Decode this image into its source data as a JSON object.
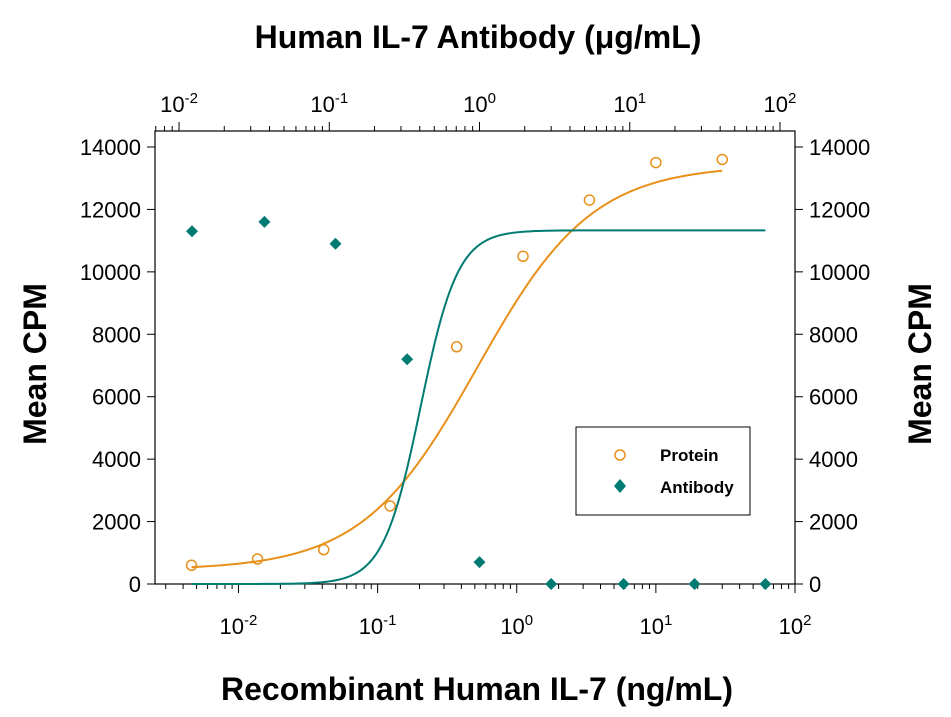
{
  "chart_data": {
    "type": "scatter",
    "title": "Human IL-7 Antibody (μg/mL)",
    "xlabel": "Recombinant Human IL-7 (ng/mL)",
    "ylabel": "Mean CPM",
    "ylabel_right": "Mean CPM",
    "x_scale": "log",
    "xlim": [
      0.002512,
      100
    ],
    "top_x_scale": "log",
    "top_xlim": [
      0.006918,
      125.9
    ],
    "ylim": [
      0,
      14000
    ],
    "y_ticks": [
      "0",
      "2000",
      "4000",
      "6000",
      "8000",
      "10000",
      "12000",
      "14000"
    ],
    "x_ticks": [
      {
        "value": 0.01,
        "base": "10",
        "exp": "-2"
      },
      {
        "value": 0.1,
        "base": "10",
        "exp": "-1"
      },
      {
        "value": 1,
        "base": "10",
        "exp": "0"
      },
      {
        "value": 10,
        "base": "10",
        "exp": "1"
      },
      {
        "value": 100,
        "base": "10",
        "exp": "2"
      }
    ],
    "top_x_ticks": [
      {
        "value": 0.01,
        "base": "10",
        "exp": "-2"
      },
      {
        "value": 0.1,
        "base": "10",
        "exp": "-1"
      },
      {
        "value": 1,
        "base": "10",
        "exp": "0"
      },
      {
        "value": 10,
        "base": "10",
        "exp": "1"
      },
      {
        "value": 100,
        "base": "10",
        "exp": "2"
      }
    ],
    "grid": false,
    "legend_position": "center-right",
    "series": [
      {
        "name": "Protein",
        "marker": "open-circle",
        "color": "#E8901A",
        "axis": "bottom",
        "points": [
          {
            "x": 0.0046,
            "y": 600
          },
          {
            "x": 0.0137,
            "y": 800
          },
          {
            "x": 0.041,
            "y": 1100
          },
          {
            "x": 0.123,
            "y": 2500
          },
          {
            "x": 0.37,
            "y": 7600
          },
          {
            "x": 1.11,
            "y": 10500
          },
          {
            "x": 3.33,
            "y": 12300
          },
          {
            "x": 10,
            "y": 13500
          },
          {
            "x": 30,
            "y": 13600
          }
        ],
        "fit": {
          "bottom": 450,
          "top": 13420,
          "ec50": 0.52,
          "hill": 1.05
        }
      },
      {
        "name": "Antibody",
        "marker": "filled-diamond",
        "color": "#007B73",
        "axis": "top",
        "points": [
          {
            "x": 0.0122,
            "y": 11300
          },
          {
            "x": 0.037,
            "y": 11600
          },
          {
            "x": 0.11,
            "y": 10900
          },
          {
            "x": 0.33,
            "y": 7200
          },
          {
            "x": 1.0,
            "y": 700
          },
          {
            "x": 3.0,
            "y": 0
          },
          {
            "x": 9.1,
            "y": 0
          },
          {
            "x": 27,
            "y": 0
          },
          {
            "x": 80,
            "y": 0
          }
        ],
        "fit": {
          "bottom": 0,
          "top": 11330,
          "ec50": 0.405,
          "hill": 3.5
        }
      }
    ]
  }
}
